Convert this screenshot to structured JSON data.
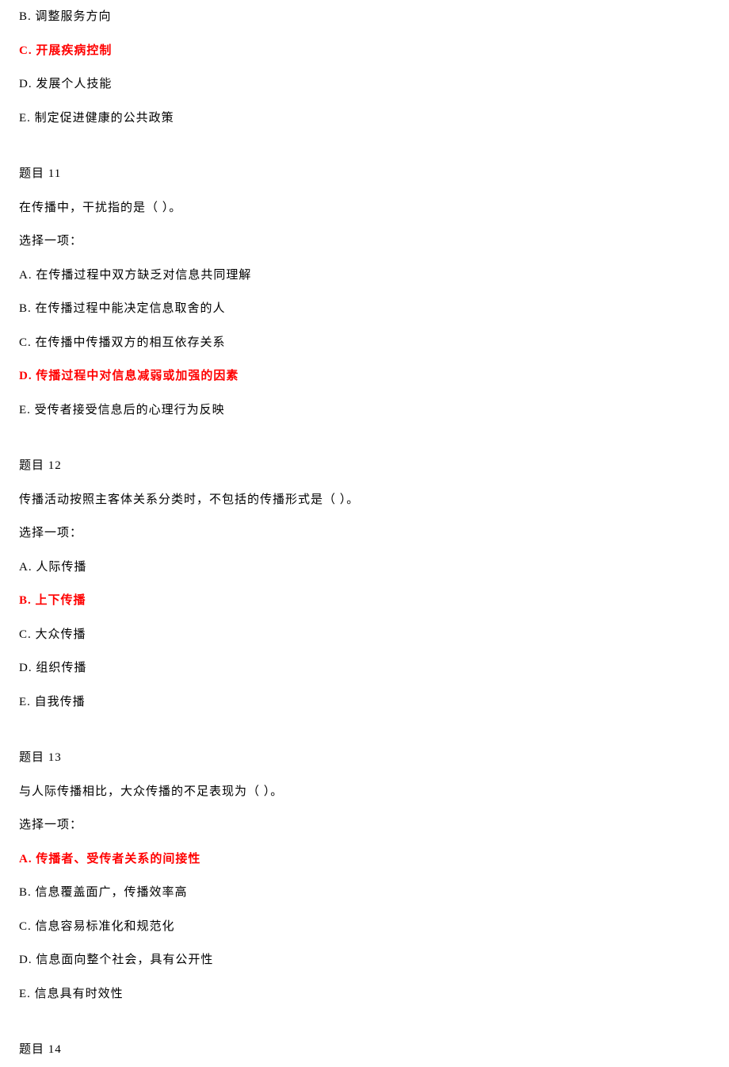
{
  "colors": {
    "text_normal": "#000000",
    "text_correct": "#ff0000",
    "background": "#ffffff"
  },
  "typography": {
    "font_family": "SimSun",
    "font_size_pt": 11,
    "line_spacing": 1.5
  },
  "q10_remainder": {
    "options": {
      "b": "B. 调整服务方向",
      "c": "C. 开展疾病控制",
      "d": "D. 发展个人技能",
      "e": "E. 制定促进健康的公共政策"
    },
    "correct": "c"
  },
  "q11": {
    "header": "题目 11",
    "text": "在传播中，干扰指的是（  ）。",
    "choose": "选择一项：",
    "options": {
      "a": "A. 在传播过程中双方缺乏对信息共同理解",
      "b": "B. 在传播过程中能决定信息取舍的人",
      "c": "C. 在传播中传播双方的相互依存关系",
      "d": "D. 传播过程中对信息减弱或加强的因素",
      "e": "E. 受传者接受信息后的心理行为反映"
    },
    "correct": "d"
  },
  "q12": {
    "header": "题目 12",
    "text": "传播活动按照主客体关系分类时，不包括的传播形式是（  ）。",
    "choose": "选择一项：",
    "options": {
      "a": "A. 人际传播",
      "b": "B. 上下传播",
      "c": "C. 大众传播",
      "d": "D. 组织传播",
      "e": "E. 自我传播"
    },
    "correct": "b"
  },
  "q13": {
    "header": "题目 13",
    "text": "与人际传播相比，大众传播的不足表现为（  ）。",
    "choose": "选择一项：",
    "options": {
      "a": "A. 传播者、受传者关系的间接性",
      "b": "B. 信息覆盖面广，传播效率高",
      "c": "C. 信息容易标准化和规范化",
      "d": "D. 信息面向整个社会，具有公开性",
      "e": "E. 信息具有时效性"
    },
    "correct": "a"
  },
  "q14": {
    "header": "题目 14"
  }
}
